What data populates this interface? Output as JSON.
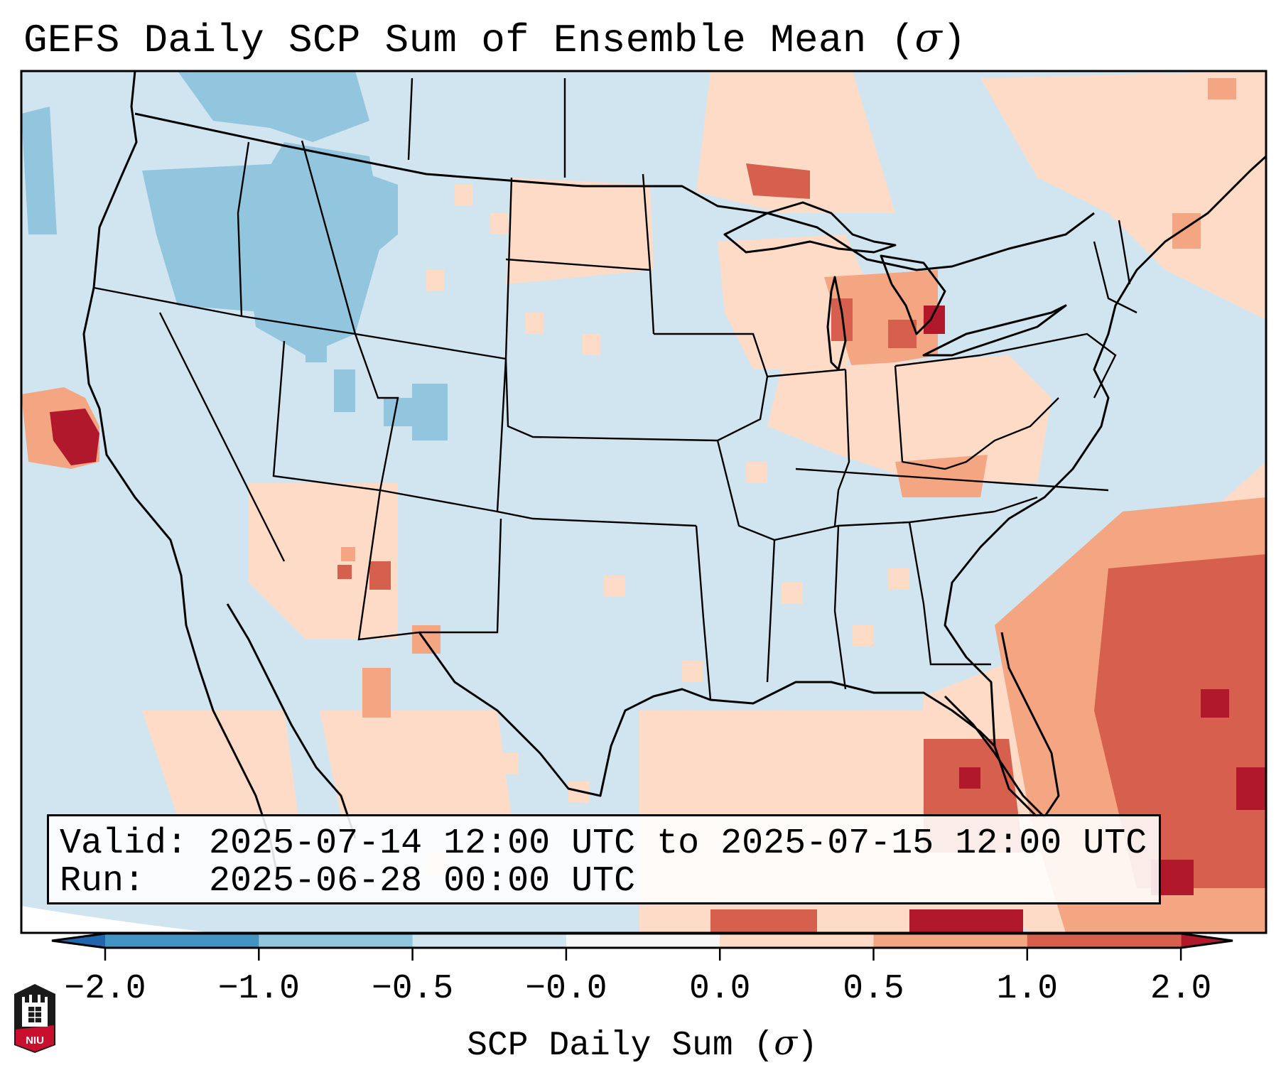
{
  "title": {
    "prefix": "GEFS Daily SCP Sum of Ensemble Mean (",
    "symbol": "σ",
    "suffix": ")"
  },
  "legend": {
    "valid_label": "Valid:",
    "valid_text": "2025-07-14 12:00 UTC to 2025-07-15 12:00 UTC",
    "run_label": "Run:",
    "run_text": "2025-06-28 00:00 UTC"
  },
  "colorbar": {
    "label_prefix": "SCP Daily Sum (",
    "label_symbol": "σ",
    "label_suffix": ")",
    "ticks": [
      "−2.0",
      "−1.0",
      "−0.5",
      "−0.0",
      "0.0",
      "0.5",
      "1.0",
      "2.0"
    ],
    "extend": "both"
  },
  "logo": {
    "text": "NIU"
  },
  "chart_data": {
    "type": "heatmap",
    "title": "GEFS Daily SCP Sum of Ensemble Mean (σ)",
    "region": "Contiguous United States",
    "colorbar_label": "SCP Daily Sum (σ)",
    "levels": [
      -2.0,
      -1.0,
      -0.5,
      -0.0,
      0.0,
      0.5,
      1.0,
      2.0
    ],
    "level_colors": [
      "#2166ac",
      "#4393c3",
      "#92c5de",
      "#d1e5f0",
      "#f7f7f7",
      "#fddbc7",
      "#f4a582",
      "#d6604d",
      "#b2182b"
    ],
    "under_color": "#2166ac",
    "over_color": "#b2182b",
    "valid": "2025-07-14 12:00 UTC to 2025-07-15 12:00 UTC",
    "run": "2025-06-28 00:00 UTC",
    "highlights": [
      {
        "area": "Northwest / Idaho / Montana",
        "category": "-1.0 to -0.5"
      },
      {
        "area": "Central California coast (offshore)",
        "category": "> 2.0"
      },
      {
        "area": "Upper Great Lakes / Michigan",
        "category": "0.5 to 2.0"
      },
      {
        "area": "Western Atlantic off Southeast coast",
        "category": "1.0 to 2.0"
      },
      {
        "area": "Florida / Bahamas",
        "category": "1.0 to > 2.0"
      },
      {
        "area": "Caribbean / Cuba south",
        "category": "> 2.0"
      }
    ]
  }
}
